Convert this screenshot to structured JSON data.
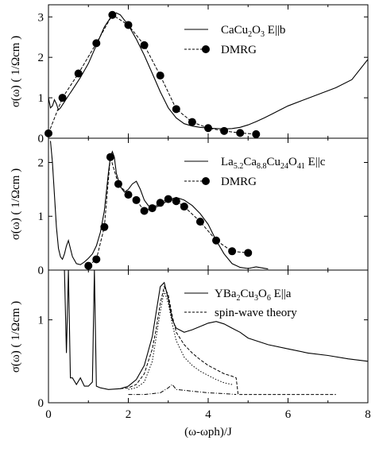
{
  "chart_data": [
    {
      "type": "line",
      "panel": "top",
      "xlim": [
        0,
        8
      ],
      "ylim": [
        0,
        3.3
      ],
      "ylabel": "σ(ω)  ( 1/Ωcm )",
      "y_ticks": [
        "0",
        "1",
        "2",
        "3"
      ],
      "legend": [
        {
          "label": "CaCu2O3  E||b",
          "style": "solid"
        },
        {
          "label": "DMRG",
          "style": "dashed-dots"
        }
      ],
      "series": [
        {
          "name": "CaCu2O3  E||b",
          "style": "solid",
          "x": [
            0.0,
            0.05,
            0.1,
            0.15,
            0.2,
            0.25,
            0.3,
            0.4,
            0.5,
            0.6,
            0.8,
            1.0,
            1.2,
            1.4,
            1.6,
            1.7,
            1.8,
            2.0,
            2.2,
            2.4,
            2.6,
            2.8,
            3.0,
            3.2,
            3.4,
            3.6,
            3.8,
            4.0,
            4.2,
            4.4,
            4.6,
            4.8,
            5.0,
            5.2,
            5.4,
            5.6,
            5.8,
            6.0,
            6.4,
            6.8,
            7.2,
            7.6,
            8.0
          ],
          "y": [
            1.0,
            0.75,
            0.8,
            0.95,
            0.85,
            0.7,
            0.75,
            0.9,
            1.05,
            1.2,
            1.5,
            1.85,
            2.3,
            2.75,
            3.05,
            3.1,
            3.05,
            2.8,
            2.45,
            2.05,
            1.6,
            1.15,
            0.75,
            0.5,
            0.36,
            0.3,
            0.27,
            0.25,
            0.24,
            0.23,
            0.24,
            0.27,
            0.33,
            0.41,
            0.5,
            0.6,
            0.7,
            0.8,
            0.95,
            1.1,
            1.25,
            1.45,
            1.95
          ]
        },
        {
          "name": "DMRG",
          "style": "dashed",
          "markers": true,
          "x": [
            0.0,
            0.35,
            0.75,
            1.2,
            1.6,
            2.0,
            2.4,
            2.8,
            3.2,
            3.6,
            4.0,
            4.4,
            4.8,
            5.2
          ],
          "y": [
            0.12,
            1.0,
            1.6,
            2.35,
            3.05,
            2.8,
            2.3,
            1.55,
            0.72,
            0.4,
            0.25,
            0.18,
            0.13,
            0.1
          ]
        }
      ]
    },
    {
      "type": "line",
      "panel": "middle",
      "xlim": [
        0,
        8
      ],
      "ylim": [
        0,
        2.45
      ],
      "ylabel": "σ(ω)  ( 1/Ωcm )",
      "y_ticks": [
        "0",
        "1",
        "2"
      ],
      "legend": [
        {
          "label": "La5.2Ca8.8Cu24O41  E||c",
          "style": "solid"
        },
        {
          "label": "DMRG",
          "style": "dashed-dots"
        }
      ],
      "series": [
        {
          "name": "La5.2Ca8.8Cu24O41  E||c",
          "style": "solid",
          "x": [
            0.05,
            0.1,
            0.15,
            0.2,
            0.25,
            0.3,
            0.35,
            0.4,
            0.45,
            0.5,
            0.55,
            0.6,
            0.7,
            0.8,
            0.9,
            1.0,
            1.1,
            1.2,
            1.3,
            1.4,
            1.5,
            1.55,
            1.6,
            1.65,
            1.7,
            1.8,
            1.9,
            2.0,
            2.1,
            2.2,
            2.3,
            2.4,
            2.5,
            2.6,
            2.8,
            3.0,
            3.2,
            3.4,
            3.6,
            3.8,
            4.0,
            4.2,
            4.4,
            4.6,
            4.8,
            5.0,
            5.2,
            5.5
          ],
          "y": [
            2.4,
            2.0,
            1.4,
            0.8,
            0.4,
            0.25,
            0.2,
            0.3,
            0.45,
            0.55,
            0.4,
            0.25,
            0.12,
            0.1,
            0.15,
            0.22,
            0.3,
            0.45,
            0.7,
            1.1,
            1.8,
            2.1,
            2.2,
            2.1,
            1.8,
            1.55,
            1.45,
            1.5,
            1.6,
            1.65,
            1.5,
            1.3,
            1.2,
            1.15,
            1.2,
            1.3,
            1.35,
            1.3,
            1.2,
            1.05,
            0.85,
            0.55,
            0.3,
            0.12,
            0.05,
            0.03,
            0.06,
            0.02
          ]
        },
        {
          "name": "DMRG",
          "style": "dashed",
          "markers": true,
          "x": [
            1.0,
            1.2,
            1.4,
            1.55,
            1.75,
            2.0,
            2.2,
            2.4,
            2.6,
            2.8,
            3.0,
            3.2,
            3.4,
            3.8,
            4.2,
            4.6,
            5.0
          ],
          "y": [
            0.08,
            0.2,
            0.8,
            2.1,
            1.6,
            1.4,
            1.3,
            1.1,
            1.15,
            1.25,
            1.32,
            1.28,
            1.18,
            0.9,
            0.55,
            0.35,
            0.32
          ]
        }
      ]
    },
    {
      "type": "line",
      "panel": "bottom",
      "xlim": [
        0,
        8
      ],
      "ylim": [
        0,
        1.6
      ],
      "ylabel": "σ(ω)  ( 1/Ωcm )",
      "xlabel": "(ω-ωph)/J",
      "x_ticks": [
        "0",
        "2",
        "4",
        "6",
        "8"
      ],
      "y_ticks": [
        "0",
        "1"
      ],
      "legend": [
        {
          "label": "YBa2Cu3O6  E||a",
          "style": "solid"
        },
        {
          "label": "spin-wave theory",
          "style": "dashed"
        }
      ],
      "series": [
        {
          "name": "YBa2Cu3O6  E||a",
          "style": "solid",
          "x": [
            0.4,
            0.45,
            0.5,
            0.55,
            0.6,
            0.7,
            0.8,
            0.9,
            1.0,
            1.1,
            1.15,
            1.2,
            1.3,
            1.5,
            1.8,
            2.0,
            2.2,
            2.4,
            2.6,
            2.7,
            2.8,
            2.9,
            3.0,
            3.1,
            3.2,
            3.4,
            3.6,
            3.8,
            4.0,
            4.2,
            4.4,
            4.6,
            4.8,
            5.0,
            5.5,
            6.0,
            6.5,
            7.0,
            7.5,
            8.0
          ],
          "y": [
            1.6,
            0.6,
            1.6,
            0.3,
            0.3,
            0.22,
            0.3,
            0.2,
            0.2,
            0.25,
            1.6,
            0.2,
            0.18,
            0.16,
            0.17,
            0.2,
            0.28,
            0.45,
            0.8,
            1.1,
            1.4,
            1.45,
            1.25,
            1.0,
            0.9,
            0.85,
            0.88,
            0.92,
            0.96,
            0.98,
            0.95,
            0.9,
            0.85,
            0.78,
            0.7,
            0.65,
            0.6,
            0.57,
            0.53,
            0.5
          ]
        },
        {
          "name": "spin-wave theory",
          "style": "dashed",
          "x": [
            1.8,
            2.0,
            2.2,
            2.4,
            2.6,
            2.7,
            2.8,
            2.9,
            3.0,
            3.1,
            3.2,
            3.4,
            3.6,
            3.8,
            4.0,
            4.2,
            4.4,
            4.6,
            4.7,
            4.75,
            5.0,
            6.0,
            7.2
          ],
          "y": [
            0.17,
            0.18,
            0.22,
            0.35,
            0.65,
            0.9,
            1.2,
            1.4,
            1.3,
            1.05,
            0.85,
            0.7,
            0.6,
            0.52,
            0.45,
            0.4,
            0.35,
            0.32,
            0.3,
            0.1,
            0.1,
            0.1,
            0.1
          ]
        },
        {
          "name": "",
          "style": "dotted",
          "x": [
            2.0,
            2.2,
            2.4,
            2.6,
            2.7,
            2.8,
            2.9,
            3.0,
            3.1,
            3.2,
            3.4,
            3.6,
            3.8,
            4.0,
            4.2,
            4.4,
            4.6
          ],
          "y": [
            0.16,
            0.18,
            0.25,
            0.5,
            0.8,
            1.1,
            1.35,
            1.2,
            0.95,
            0.75,
            0.55,
            0.45,
            0.38,
            0.33,
            0.28,
            0.24,
            0.22
          ]
        },
        {
          "name": "",
          "style": "dashdot",
          "x": [
            2.0,
            2.4,
            2.8,
            3.0,
            3.1,
            3.2,
            3.6,
            4.0,
            4.4,
            4.7
          ],
          "y": [
            0.1,
            0.1,
            0.12,
            0.18,
            0.22,
            0.16,
            0.14,
            0.12,
            0.11,
            0.1
          ]
        }
      ]
    }
  ]
}
